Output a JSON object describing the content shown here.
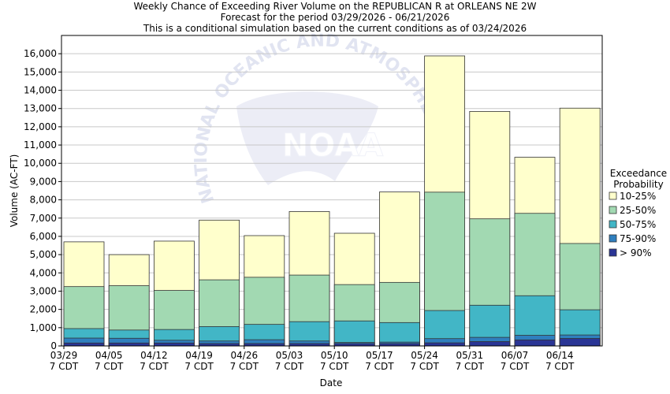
{
  "chart_data": {
    "type": "bar",
    "title_lines": [
      "Weekly Chance of Exceeding River Volume on the REPUBLICAN R at ORLEANS NE 2W",
      "Forecast for the period 03/29/2026 - 06/21/2026",
      "This is a conditional simulation based on the current conditions as of 03/24/2026"
    ],
    "xlabel": "Date",
    "ylabel": "Volume (AC-FT)",
    "ylim": [
      0,
      17000
    ],
    "yticks": [
      "0",
      "1,000",
      "2,000",
      "3,000",
      "4,000",
      "5,000",
      "6,000",
      "7,000",
      "8,000",
      "9,000",
      "10,000",
      "11,000",
      "12,000",
      "13,000",
      "14,000",
      "15,000",
      "16,000"
    ],
    "xtick_dates": [
      "03/29",
      "04/05",
      "04/12",
      "04/19",
      "04/26",
      "05/03",
      "05/10",
      "05/17",
      "05/24",
      "05/31",
      "06/07",
      "06/14"
    ],
    "xtick_sub": "7 CDT",
    "legend": {
      "title_lines": [
        "Exceedance",
        "Probability"
      ],
      "placement": "right"
    },
    "series": [
      {
        "name": "> 90%",
        "color": "#2a3595",
        "values": [
          430,
          420,
          310,
          270,
          340,
          270,
          190,
          210,
          400,
          470,
          580,
          600
        ]
      },
      {
        "name": "75-90%",
        "color": "#2f7fbe",
        "values": [
          950,
          870,
          900,
          1060,
          1180,
          1330,
          1370,
          1280,
          1940,
          2230,
          2750,
          1980
        ]
      },
      {
        "name": "50-75%",
        "color": "#42b6c6",
        "values": [
          3250,
          3300,
          3040,
          3620,
          3760,
          3880,
          3360,
          3480,
          8420,
          6960,
          7260,
          5610
        ]
      },
      {
        "name": "25-50%",
        "color": "#a2d9b2",
        "values": [
          5700,
          5000,
          5740,
          6890,
          6040,
          7360,
          6170,
          8430,
          15880,
          12840,
          10330,
          13020
        ]
      },
      {
        "name": "10-25%",
        "color": "#ffffcc",
        "values": [
          5700,
          5000,
          5740,
          6890,
          6040,
          7360,
          6170,
          8430,
          15880,
          12840,
          10330,
          13020
        ]
      }
    ],
    "inner_values": [
      [
        160,
        160,
        160,
        130,
        130,
        130,
        130,
        130,
        170,
        240,
        330,
        410
      ],
      [
        430,
        420,
        310,
        270,
        340,
        270,
        190,
        210,
        400,
        470,
        580,
        600
      ]
    ],
    "watermark": "NATIONAL OCEANIC AND ATMOSPHERIC",
    "watermark_logo": "NOAA"
  }
}
